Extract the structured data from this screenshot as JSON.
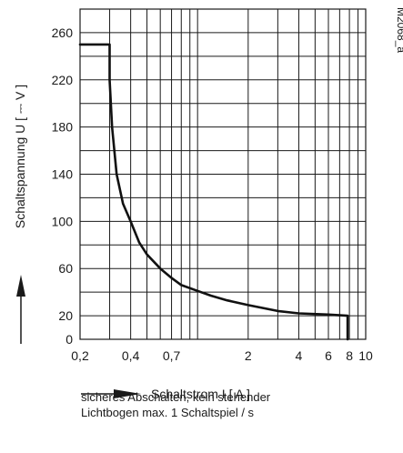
{
  "figure_code": "M2068_a",
  "note_lines": [
    "sicheres Abschalten, kein stehender",
    "Lichtbogen max.  1 Schaltspiel  / s"
  ],
  "chart_data": {
    "type": "line",
    "xlabel": "Schaltstrom   I   [ A ]",
    "ylabel": "Schaltspannung   U   [ ⎓ V ]",
    "x_scale": "log",
    "xlim": [
      0.2,
      10
    ],
    "ylim": [
      0,
      280
    ],
    "x_ticks": [
      {
        "label": "0,2",
        "value": 0.2
      },
      {
        "label": "0,4",
        "value": 0.4
      },
      {
        "label": "0,7",
        "value": 0.7
      },
      {
        "label": "2",
        "value": 2
      },
      {
        "label": "4",
        "value": 4
      },
      {
        "label": "6",
        "value": 6
      },
      {
        "label": "8",
        "value": 8
      },
      {
        "label": "10",
        "value": 10
      }
    ],
    "y_ticks": [
      {
        "label": "260",
        "value": 260
      },
      {
        "label": "220",
        "value": 220
      },
      {
        "label": "180",
        "value": 180
      },
      {
        "label": "140",
        "value": 140
      },
      {
        "label": "100",
        "value": 100
      },
      {
        "label": "60",
        "value": 60
      },
      {
        "label": "20",
        "value": 20
      },
      {
        "label": "0",
        "value": 0
      }
    ],
    "grid": true,
    "series": [
      {
        "x": [
          0.2,
          0.3,
          0.3,
          0.31,
          0.33,
          0.36,
          0.4,
          0.45,
          0.5,
          0.6,
          0.7,
          0.8,
          1.0,
          1.2,
          1.5,
          2.0,
          3.0,
          4.0,
          6.0,
          7.8,
          7.8
        ],
        "y": [
          250,
          250,
          220,
          180,
          140,
          115,
          100,
          82,
          72,
          60,
          52,
          46,
          41,
          37,
          33,
          29,
          24,
          22,
          21,
          20,
          0
        ]
      }
    ]
  }
}
